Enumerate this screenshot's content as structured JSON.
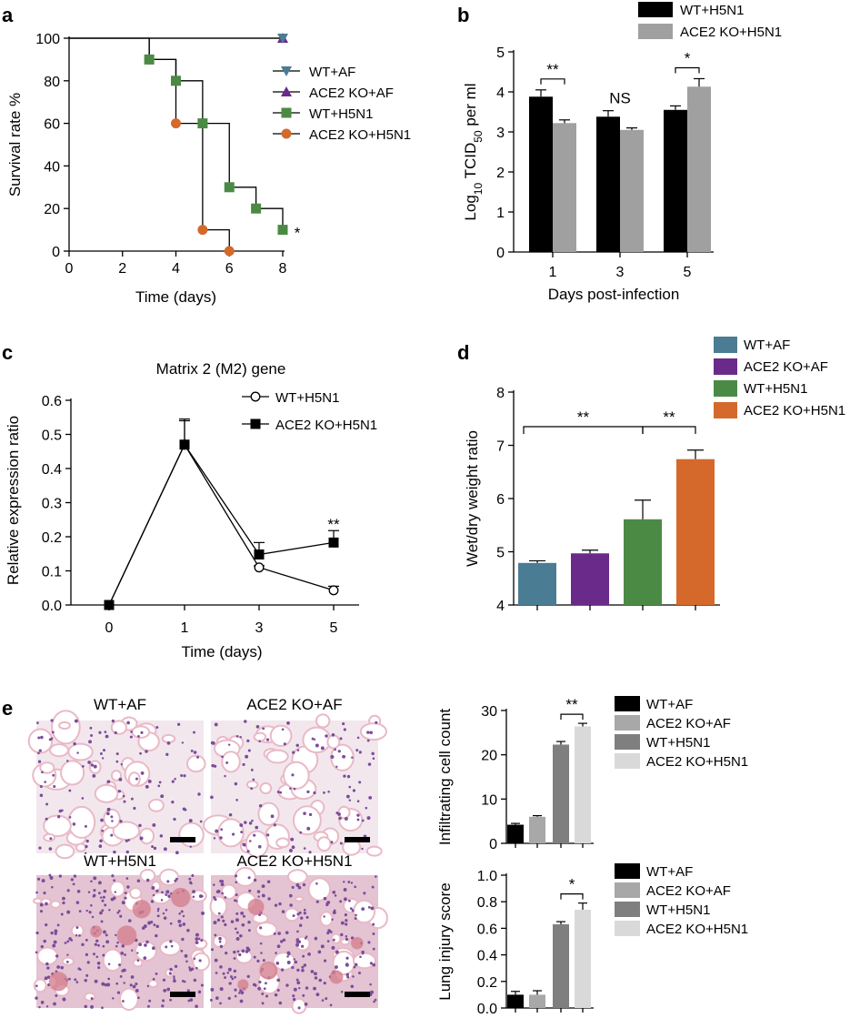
{
  "figure": {
    "colors": {
      "wt_af": "#4a7c93",
      "ko_af": "#6a2a8a",
      "wt_h5n1": "#4b8a45",
      "ko_h5n1": "#d4692b",
      "black": "#000000",
      "gray": "#a0a0a0",
      "dark_gray": "#7f7f7f",
      "light_gray": "#d9d9d9",
      "mid_gray": "#a8a8a8",
      "histo_pink": "#e9b9c6",
      "histo_purple": "#7a4d9a"
    }
  },
  "chart_data": [
    {
      "id": "a",
      "panel_label": "a",
      "type": "line",
      "subtype": "kaplan-meier",
      "title": "",
      "xlabel": "Time (days)",
      "ylabel": "Survival rate %",
      "xlim": [
        0,
        8
      ],
      "ylim": [
        0,
        100
      ],
      "xticks": [
        0,
        2,
        4,
        6,
        8
      ],
      "yticks": [
        0,
        20,
        40,
        60,
        80,
        100
      ],
      "grid": false,
      "legend_position": "right",
      "series": [
        {
          "name": "WT+AF",
          "color_key": "wt_af",
          "marker": "triangle-down",
          "steps": [
            [
              0,
              100
            ],
            [
              8,
              100
            ]
          ],
          "markers": [
            [
              8,
              100
            ]
          ]
        },
        {
          "name": "ACE2 KO+AF",
          "color_key": "ko_af",
          "marker": "triangle-up",
          "steps": [
            [
              0,
              100
            ],
            [
              8,
              100
            ]
          ],
          "markers": [
            [
              8,
              100
            ]
          ]
        },
        {
          "name": "WT+H5N1",
          "color_key": "wt_h5n1",
          "marker": "square",
          "steps": [
            [
              0,
              100
            ],
            [
              3,
              100
            ],
            [
              3,
              90
            ],
            [
              4,
              90
            ],
            [
              4,
              80
            ],
            [
              5,
              80
            ],
            [
              5,
              60
            ],
            [
              6,
              60
            ],
            [
              6,
              30
            ],
            [
              7,
              30
            ],
            [
              7,
              20
            ],
            [
              8,
              20
            ],
            [
              8,
              10
            ]
          ],
          "markers": [
            [
              3,
              90
            ],
            [
              4,
              80
            ],
            [
              5,
              60
            ],
            [
              6,
              30
            ],
            [
              7,
              20
            ],
            [
              8,
              10
            ]
          ]
        },
        {
          "name": "ACE2 KO+H5N1",
          "color_key": "ko_h5n1",
          "marker": "circle",
          "steps": [
            [
              3,
              100
            ],
            [
              3,
              90
            ],
            [
              4,
              90
            ],
            [
              4,
              60
            ],
            [
              5,
              60
            ],
            [
              5,
              10
            ],
            [
              6,
              10
            ],
            [
              6,
              0
            ]
          ],
          "markers": [
            [
              3,
              90
            ],
            [
              4,
              60
            ],
            [
              5,
              10
            ],
            [
              6,
              0
            ]
          ]
        }
      ],
      "annotations": [
        {
          "text": "*",
          "x": 8,
          "y": 10
        }
      ]
    },
    {
      "id": "b",
      "panel_label": "b",
      "type": "bar",
      "title": "",
      "xlabel": "Days post-infection",
      "ylabel_parts": [
        "Log",
        "10",
        " TCID",
        "50",
        " per ml"
      ],
      "categories": [
        "1",
        "3",
        "5"
      ],
      "ylim": [
        0,
        5
      ],
      "yticks": [
        0,
        1,
        2,
        3,
        4,
        5
      ],
      "grid": false,
      "legend_position": "top-right",
      "series": [
        {
          "name": "WT+H5N1",
          "color_key": "black",
          "values": [
            3.88,
            3.38,
            3.55
          ],
          "errors": [
            0.17,
            0.15,
            0.1
          ]
        },
        {
          "name": "ACE2 KO+H5N1",
          "color_key": "gray",
          "values": [
            3.22,
            3.05,
            4.13
          ],
          "errors": [
            0.08,
            0.05,
            0.2
          ]
        }
      ],
      "significance": [
        "**",
        "NS",
        "*"
      ]
    },
    {
      "id": "c",
      "panel_label": "c",
      "type": "line",
      "title": "Matrix 2 (M2) gene",
      "xlabel": "Time (days)",
      "ylabel": "Relative expression ratio",
      "x_categories": [
        "0",
        "1",
        "3",
        "5"
      ],
      "ylim": [
        0,
        0.6
      ],
      "yticks": [
        "0.0",
        "0.1",
        "0.2",
        "0.3",
        "0.4",
        "0.5",
        "0.6"
      ],
      "grid": false,
      "legend_position": "top-right",
      "series": [
        {
          "name": "WT+H5N1",
          "marker": "open-circle",
          "values": [
            0,
            0.47,
            0.11,
            0.043
          ],
          "errors": [
            0,
            0.07,
            0.005,
            0.012
          ]
        },
        {
          "name": "ACE2 KO+H5N1",
          "marker": "filled-square",
          "values": [
            0,
            0.47,
            0.148,
            0.183
          ],
          "errors": [
            0,
            0.075,
            0.035,
            0.035
          ]
        }
      ],
      "annotations": [
        {
          "text": "**",
          "category": "5"
        }
      ]
    },
    {
      "id": "d",
      "panel_label": "d",
      "type": "bar",
      "title": "",
      "xlabel": "",
      "ylabel": "Wet/dry weight ratio",
      "categories": [
        "WT+AF",
        "ACE2 KO+AF",
        "WT+H5N1",
        "ACE2 KO+H5N1"
      ],
      "ylim": [
        4,
        8
      ],
      "yticks": [
        4,
        5,
        6,
        7,
        8
      ],
      "grid": false,
      "legend_position": "top-right",
      "values": [
        4.79,
        4.97,
        5.61,
        6.74
      ],
      "errors": [
        0.04,
        0.06,
        0.36,
        0.17
      ],
      "color_keys": [
        "wt_af",
        "ko_af",
        "wt_h5n1",
        "ko_h5n1"
      ],
      "brackets": [
        {
          "text": "**",
          "from": 0,
          "to": 2
        },
        {
          "text": "**",
          "from": 2,
          "to": 3
        }
      ]
    },
    {
      "id": "e1",
      "panel_label": "e",
      "type": "bar",
      "title": "",
      "xlabel": "",
      "ylabel": "Infiltrating cell count",
      "categories": [
        "WT+AF",
        "ACE2 KO+AF",
        "WT+H5N1",
        "ACE2 KO+H5N1"
      ],
      "ylim": [
        0,
        30
      ],
      "yticks": [
        0,
        10,
        20,
        30
      ],
      "grid": false,
      "legend_position": "right",
      "values": [
        4.2,
        6.0,
        22.3,
        26.4
      ],
      "errors": [
        0.3,
        0.25,
        0.7,
        0.7
      ],
      "color_keys": [
        "black",
        "mid_gray",
        "dark_gray",
        "light_gray"
      ],
      "brackets": [
        {
          "text": "**",
          "from": 2,
          "to": 3
        }
      ]
    },
    {
      "id": "e2",
      "type": "bar",
      "title": "",
      "xlabel": "",
      "ylabel": "Lung injury score",
      "categories": [
        "WT+AF",
        "ACE2 KO+AF",
        "WT+H5N1",
        "ACE2 KO+H5N1"
      ],
      "ylim": [
        0,
        1.0
      ],
      "yticks": [
        "0.0",
        "0.2",
        "0.4",
        "0.6",
        "0.8",
        "1.0"
      ],
      "grid": false,
      "legend_position": "right",
      "values": [
        0.1,
        0.1,
        0.63,
        0.74
      ],
      "errors": [
        0.025,
        0.03,
        0.02,
        0.05
      ],
      "color_keys": [
        "black",
        "mid_gray",
        "dark_gray",
        "light_gray"
      ],
      "brackets": [
        {
          "text": "*",
          "from": 2,
          "to": 3
        }
      ]
    }
  ],
  "histology": {
    "images": [
      {
        "caption": "WT+AF",
        "density": "sparse"
      },
      {
        "caption": "ACE2 KO+AF",
        "density": "sparse"
      },
      {
        "caption": "WT+H5N1",
        "density": "dense"
      },
      {
        "caption": "ACE2 KO+H5N1",
        "density": "dense"
      }
    ]
  }
}
